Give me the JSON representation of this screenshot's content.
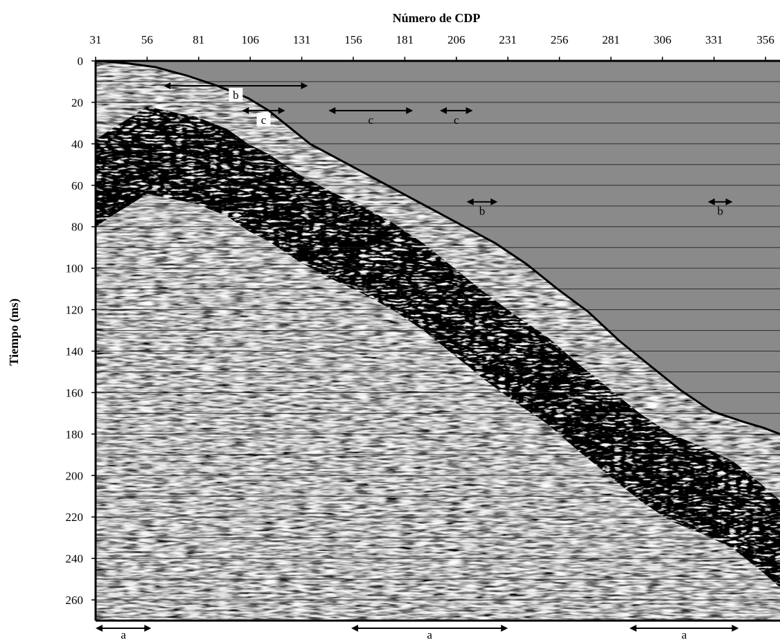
{
  "chart_data": {
    "type": "seismic-section",
    "xlabel": "Número de CDP",
    "ylabel": "Tiempo (ms)",
    "x_ticks": [
      "31",
      "56",
      "81",
      "106",
      "131",
      "156",
      "181",
      "206",
      "231",
      "256",
      "281",
      "306",
      "331",
      "356"
    ],
    "y_ticks": [
      "0",
      "20",
      "40",
      "60",
      "80",
      "100",
      "120",
      "140",
      "160",
      "180",
      "200",
      "220",
      "240",
      "260"
    ],
    "xlim": [
      31,
      363
    ],
    "ylim": [
      0,
      270
    ],
    "mute_boundary": {
      "cdp": [
        31,
        45,
        60,
        75,
        90,
        105,
        115,
        125,
        135,
        150,
        165,
        180,
        195,
        210,
        225,
        240,
        255,
        270,
        285,
        300,
        315,
        330,
        345,
        355,
        363
      ],
      "time_ms": [
        0,
        1,
        3,
        7,
        12,
        18,
        24,
        32,
        40,
        48,
        56,
        64,
        72,
        80,
        88,
        98,
        110,
        121,
        135,
        147,
        159,
        169,
        174,
        177,
        180
      ]
    },
    "first_break": {
      "cdp": [
        31,
        40,
        50,
        56,
        65,
        80,
        95,
        105,
        115,
        130,
        145,
        160,
        175,
        190,
        205,
        220,
        235,
        250,
        265,
        280,
        295,
        310,
        325,
        340,
        355,
        363
      ],
      "time_ms": [
        38,
        32,
        26,
        22,
        24,
        27,
        33,
        40,
        45,
        55,
        63,
        70,
        78,
        88,
        100,
        112,
        123,
        133,
        146,
        158,
        170,
        180,
        186,
        193,
        205,
        212
      ]
    },
    "annotations": [
      {
        "label": "b",
        "cdp_start": 64,
        "cdp_end": 134,
        "time_ms": 12,
        "boxed": true
      },
      {
        "label": "c",
        "cdp_start": 102,
        "cdp_end": 123,
        "time_ms": 24,
        "boxed": true
      },
      {
        "label": "c",
        "cdp_start": 144,
        "cdp_end": 185,
        "time_ms": 24,
        "boxed": false
      },
      {
        "label": "c",
        "cdp_start": 198,
        "cdp_end": 214,
        "time_ms": 24,
        "boxed": false
      },
      {
        "label": "b",
        "cdp_start": 211,
        "cdp_end": 226,
        "time_ms": 68,
        "boxed": false
      },
      {
        "label": "b",
        "cdp_start": 328,
        "cdp_end": 340,
        "time_ms": 68,
        "boxed": false
      },
      {
        "label": "a",
        "cdp_start": 31,
        "cdp_end": 58,
        "time_ms": 278,
        "boxed": false
      },
      {
        "label": "a",
        "cdp_start": 155,
        "cdp_end": 231,
        "time_ms": 278,
        "boxed": false
      },
      {
        "label": "a",
        "cdp_start": 290,
        "cdp_end": 343,
        "time_ms": 278,
        "boxed": false
      }
    ],
    "grid": false
  }
}
